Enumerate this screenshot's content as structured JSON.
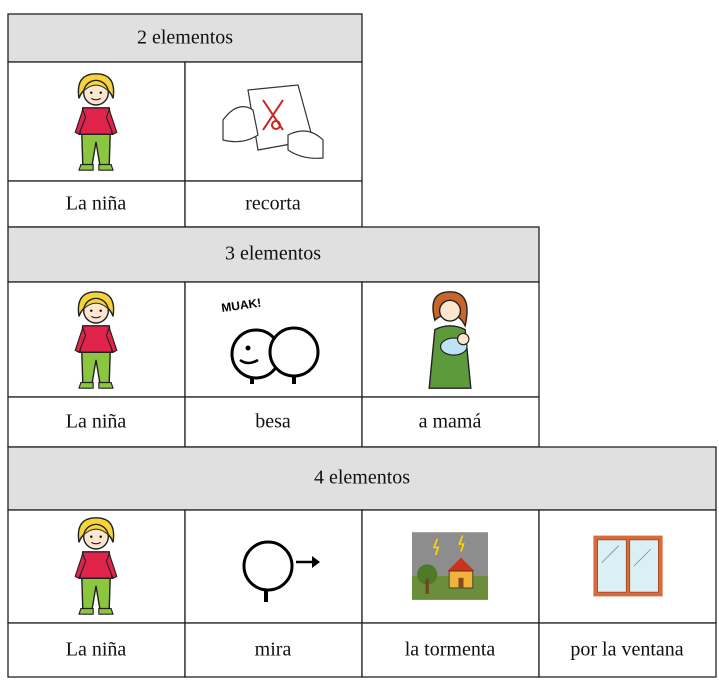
{
  "blocks": [
    {
      "title": "2 elementos",
      "cells": [
        {
          "label": "La niña"
        },
        {
          "label": "recorta"
        }
      ]
    },
    {
      "title": "3 elementos",
      "cells": [
        {
          "label": "La niña"
        },
        {
          "label": "besa",
          "image_text": "MUAK!"
        },
        {
          "label": "a mamá"
        }
      ]
    },
    {
      "title": "4 elementos",
      "cells": [
        {
          "label": "La niña"
        },
        {
          "label": "mira"
        },
        {
          "label": "la tormenta"
        },
        {
          "label": "por la ventana"
        }
      ]
    }
  ]
}
